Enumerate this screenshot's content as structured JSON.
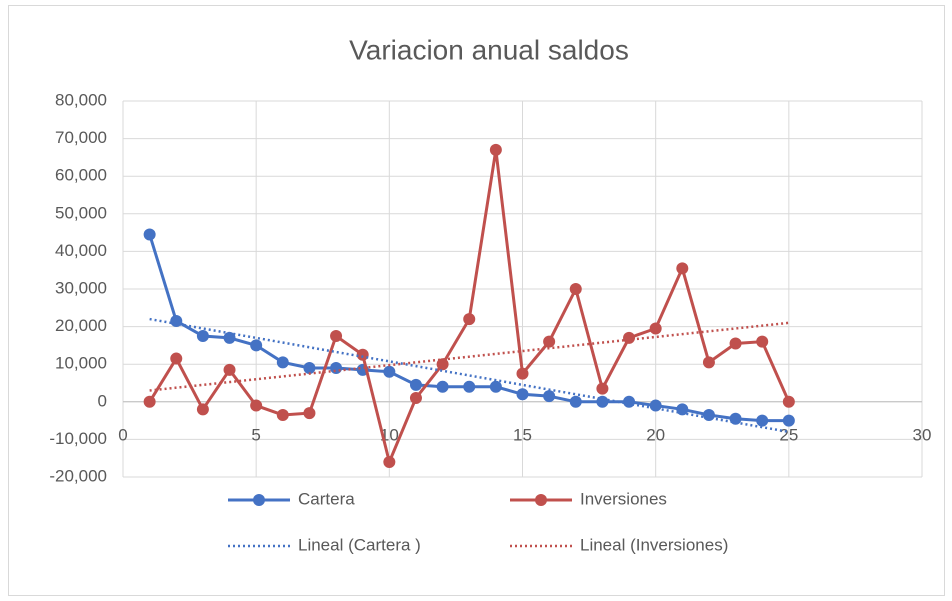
{
  "chart_data": {
    "type": "scatter",
    "title": "Variacion anual saldos",
    "xlim": [
      0,
      30
    ],
    "xticks": [
      0,
      5,
      10,
      15,
      20,
      25,
      30
    ],
    "ylim": [
      -20000,
      80000
    ],
    "yticks": [
      {
        "value": -20000,
        "label": "-20,000"
      },
      {
        "value": -10000,
        "label": "-10,000"
      },
      0,
      {
        "value": 10000,
        "label": "10,000"
      },
      {
        "value": 20000,
        "label": "20,000"
      },
      {
        "value": 30000,
        "label": "30,000"
      },
      {
        "value": 40000,
        "label": "40,000"
      },
      {
        "value": 50000,
        "label": "50,000"
      },
      {
        "value": 60000,
        "label": "60,000"
      },
      {
        "value": 70000,
        "label": "70,000"
      },
      {
        "value": 80000,
        "label": "80,000"
      }
    ],
    "grid": true,
    "legend": "bottom",
    "series": [
      {
        "name": "Cartera",
        "color": "#4472c4",
        "line_style": "solid",
        "markers": true,
        "x": [
          1,
          2,
          3,
          4,
          5,
          6,
          7,
          8,
          9,
          10,
          11,
          12,
          13,
          14,
          15,
          16,
          17,
          18,
          19,
          20,
          21,
          22,
          23,
          24,
          25
        ],
        "values": [
          44500,
          21500,
          17500,
          17000,
          15000,
          10500,
          9000,
          9000,
          8500,
          8000,
          4500,
          4000,
          4000,
          4000,
          2000,
          1500,
          0,
          0,
          0,
          -1000,
          -2000,
          -3500,
          -4500,
          -5000,
          -5000
        ]
      },
      {
        "name": "Inversiones",
        "color": "#c0504d",
        "line_style": "solid",
        "markers": true,
        "x": [
          1,
          2,
          3,
          4,
          5,
          6,
          7,
          8,
          9,
          10,
          11,
          12,
          13,
          14,
          15,
          16,
          17,
          18,
          19,
          20,
          21,
          22,
          23,
          24,
          25
        ],
        "values": [
          0,
          11500,
          -2000,
          8500,
          -1000,
          -3500,
          -3000,
          17500,
          12500,
          -16000,
          1000,
          10000,
          22000,
          67000,
          7500,
          16000,
          30000,
          3500,
          17000,
          19500,
          35500,
          10500,
          15500,
          16000,
          0
        ]
      },
      {
        "name": "Lineal (Cartera )",
        "color": "#4472c4",
        "line_style": "dotted",
        "markers": false,
        "x": [
          1,
          25
        ],
        "values": [
          22000,
          -8000
        ]
      },
      {
        "name": "Lineal (Inversiones)",
        "color": "#c0504d",
        "line_style": "dotted",
        "markers": false,
        "x": [
          1,
          25
        ],
        "values": [
          3000,
          21000
        ]
      }
    ]
  }
}
